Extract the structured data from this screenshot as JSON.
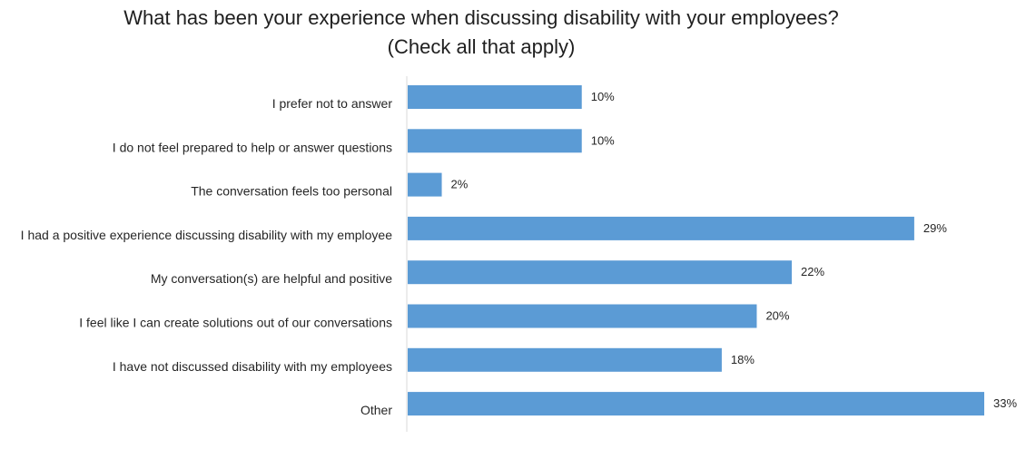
{
  "chart_data": {
    "type": "bar",
    "orientation": "horizontal",
    "title": "What has been your experience when discussing disability with your employees? (Check all that apply)",
    "categories": [
      "I prefer not to answer",
      "I do not feel prepared to help or answer questions",
      "The conversation feels too personal",
      "I had a positive experience discussing disability with my employee",
      "My conversation(s) are helpful and positive",
      "I feel like I can create solutions out of our conversations",
      "I have not discussed disability with my employees",
      "Other"
    ],
    "values": [
      10,
      10,
      2,
      29,
      22,
      20,
      18,
      33
    ],
    "value_labels": [
      "10%",
      "10%",
      "2%",
      "29%",
      "22%",
      "20%",
      "18%",
      "33%"
    ],
    "unit": "%",
    "xlim": [
      0,
      33
    ],
    "grid": false,
    "legend": "none",
    "bar_color": "#5b9bd5",
    "axis_color": "#d9d9d9"
  }
}
